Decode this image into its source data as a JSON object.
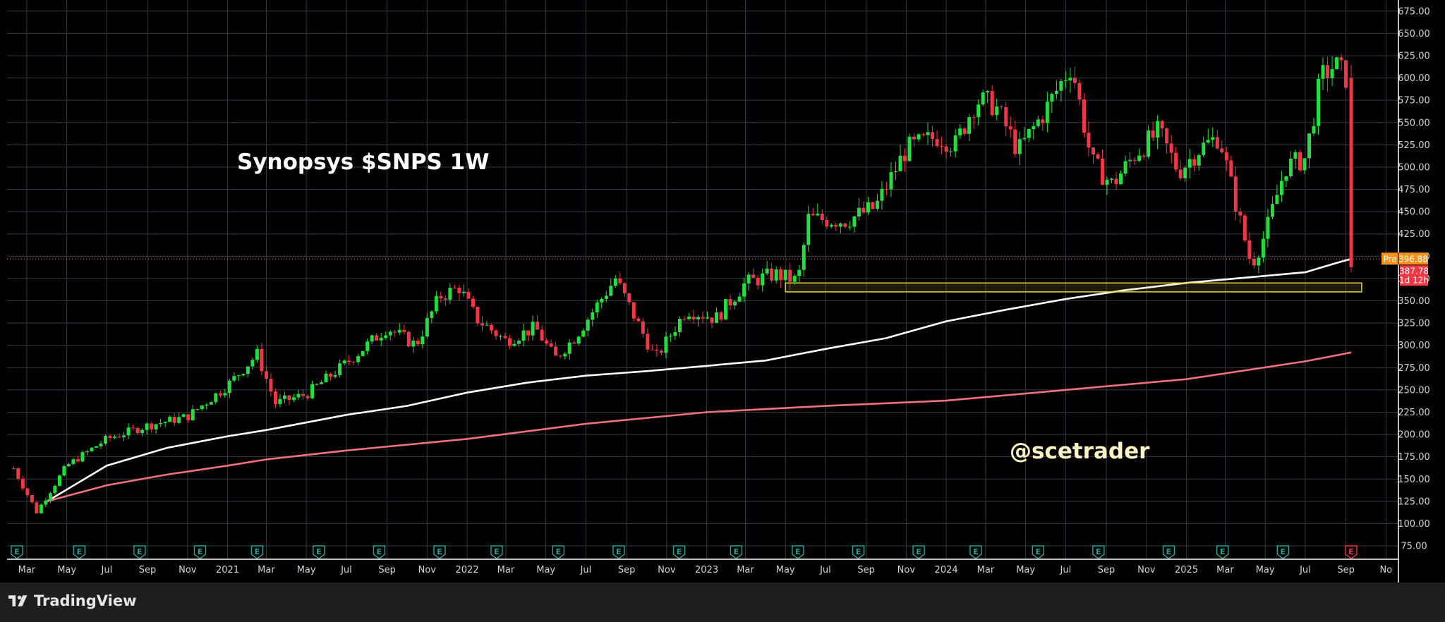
{
  "chart_data": {
    "type": "candlestick",
    "title": "Synopsys $SNPS 1W",
    "watermark": "@scetrader",
    "ylim": [
      60,
      687.5
    ],
    "y_ticks": [
      75,
      100,
      125,
      150,
      175,
      200,
      225,
      250,
      275,
      300,
      325,
      350,
      375,
      400,
      425,
      450,
      475,
      500,
      525,
      550,
      575,
      600,
      625,
      650,
      675
    ],
    "x_ticks": [
      {
        "label": "Mar",
        "x": "2020-03-01"
      },
      {
        "label": "May",
        "x": "2020-05-01"
      },
      {
        "label": "Jul",
        "x": "2020-07-01"
      },
      {
        "label": "Sep",
        "x": "2020-09-01"
      },
      {
        "label": "Nov",
        "x": "2020-11-01"
      },
      {
        "label": "2021",
        "x": "2021-01-01"
      },
      {
        "label": "Mar",
        "x": "2021-03-01"
      },
      {
        "label": "May",
        "x": "2021-05-01"
      },
      {
        "label": "Jul",
        "x": "2021-07-01"
      },
      {
        "label": "Sep",
        "x": "2021-09-01"
      },
      {
        "label": "Nov",
        "x": "2021-11-01"
      },
      {
        "label": "2022",
        "x": "2022-01-01"
      },
      {
        "label": "Mar",
        "x": "2022-03-01"
      },
      {
        "label": "May",
        "x": "2022-05-01"
      },
      {
        "label": "Jul",
        "x": "2022-07-01"
      },
      {
        "label": "Sep",
        "x": "2022-09-01"
      },
      {
        "label": "Nov",
        "x": "2022-11-01"
      },
      {
        "label": "2023",
        "x": "2023-01-01"
      },
      {
        "label": "Mar",
        "x": "2023-03-01"
      },
      {
        "label": "May",
        "x": "2023-05-01"
      },
      {
        "label": "Jul",
        "x": "2023-07-01"
      },
      {
        "label": "Sep",
        "x": "2023-09-01"
      },
      {
        "label": "Nov",
        "x": "2023-11-01"
      },
      {
        "label": "2024",
        "x": "2024-01-01"
      },
      {
        "label": "Mar",
        "x": "2024-03-01"
      },
      {
        "label": "May",
        "x": "2024-05-01"
      },
      {
        "label": "Jul",
        "x": "2024-07-01"
      },
      {
        "label": "Sep",
        "x": "2024-09-01"
      },
      {
        "label": "Nov",
        "x": "2024-11-01"
      },
      {
        "label": "2025",
        "x": "2025-01-01"
      },
      {
        "label": "Mar",
        "x": "2025-03-01"
      },
      {
        "label": "May",
        "x": "2025-05-01"
      },
      {
        "label": "Jul",
        "x": "2025-07-01"
      },
      {
        "label": "Sep",
        "x": "2025-09-01"
      },
      {
        "label": "No",
        "x": "2025-11-01"
      }
    ],
    "close_path": [
      [
        "2020-02-10",
        162
      ],
      [
        "2020-03-16",
        113
      ],
      [
        "2020-05-01",
        165
      ],
      [
        "2020-07-01",
        195
      ],
      [
        "2020-09-01",
        210
      ],
      [
        "2020-11-01",
        220
      ],
      [
        "2021-01-01",
        255
      ],
      [
        "2021-02-15",
        290
      ],
      [
        "2021-03-15",
        235
      ],
      [
        "2021-05-01",
        245
      ],
      [
        "2021-07-01",
        280
      ],
      [
        "2021-09-01",
        320
      ],
      [
        "2021-10-15",
        300
      ],
      [
        "2021-11-20",
        355
      ],
      [
        "2021-12-20",
        365
      ],
      [
        "2022-01-15",
        330
      ],
      [
        "2022-03-01",
        305
      ],
      [
        "2022-04-15",
        320
      ],
      [
        "2022-05-15",
        285
      ],
      [
        "2022-06-15",
        310
      ],
      [
        "2022-08-15",
        375
      ],
      [
        "2022-10-15",
        285
      ],
      [
        "2022-12-01",
        340
      ],
      [
        "2023-01-15",
        330
      ],
      [
        "2023-03-01",
        370
      ],
      [
        "2023-04-15",
        380
      ],
      [
        "2023-05-20",
        372
      ],
      [
        "2023-06-05",
        442
      ],
      [
        "2023-08-01",
        440
      ],
      [
        "2023-09-15",
        455
      ],
      [
        "2023-11-01",
        520
      ],
      [
        "2023-12-20",
        535
      ],
      [
        "2024-01-15",
        525
      ],
      [
        "2024-02-15",
        575
      ],
      [
        "2024-03-15",
        570
      ],
      [
        "2024-04-20",
        518
      ],
      [
        "2024-06-01",
        565
      ],
      [
        "2024-07-10",
        615
      ],
      [
        "2024-08-10",
        505
      ],
      [
        "2024-09-10",
        480
      ],
      [
        "2024-10-15",
        515
      ],
      [
        "2024-11-20",
        540
      ],
      [
        "2024-12-20",
        495
      ],
      [
        "2025-01-20",
        520
      ],
      [
        "2025-02-20",
        535
      ],
      [
        "2025-03-20",
        450
      ],
      [
        "2025-04-10",
        390
      ],
      [
        "2025-05-01",
        425
      ],
      [
        "2025-06-01",
        500
      ],
      [
        "2025-07-01",
        510
      ],
      [
        "2025-07-25",
        600
      ],
      [
        "2025-08-15",
        615
      ],
      [
        "2025-09-02",
        600
      ],
      [
        "2025-09-09",
        387.78
      ]
    ],
    "moving_averages": [
      {
        "color": "#ffffff",
        "points": [
          [
            "2020-04-01",
            125
          ],
          [
            "2020-07-01",
            165
          ],
          [
            "2020-10-01",
            185
          ],
          [
            "2021-01-01",
            198
          ],
          [
            "2021-03-01",
            205
          ],
          [
            "2021-07-01",
            222
          ],
          [
            "2021-10-01",
            232
          ],
          [
            "2022-01-01",
            247
          ],
          [
            "2022-04-01",
            258
          ],
          [
            "2022-07-01",
            266
          ],
          [
            "2022-10-01",
            271
          ],
          [
            "2023-01-01",
            277
          ],
          [
            "2023-04-01",
            283
          ],
          [
            "2023-07-01",
            296
          ],
          [
            "2023-10-01",
            308
          ],
          [
            "2024-01-01",
            327
          ],
          [
            "2024-04-01",
            340
          ],
          [
            "2024-07-01",
            352
          ],
          [
            "2024-10-01",
            362
          ],
          [
            "2025-01-01",
            370
          ],
          [
            "2025-04-01",
            376
          ],
          [
            "2025-07-01",
            382
          ],
          [
            "2025-08-20",
            393
          ],
          [
            "2025-09-09",
            397
          ]
        ]
      },
      {
        "color": "#f0707e",
        "points": [
          [
            "2020-04-01",
            125
          ],
          [
            "2020-07-01",
            143
          ],
          [
            "2020-10-01",
            155
          ],
          [
            "2021-01-01",
            165
          ],
          [
            "2021-03-01",
            172
          ],
          [
            "2021-07-01",
            182
          ],
          [
            "2022-01-01",
            195
          ],
          [
            "2022-07-01",
            212
          ],
          [
            "2023-01-01",
            225
          ],
          [
            "2023-07-01",
            232
          ],
          [
            "2024-01-01",
            238
          ],
          [
            "2024-07-01",
            250
          ],
          [
            "2025-01-01",
            262
          ],
          [
            "2025-04-01",
            272
          ],
          [
            "2025-07-01",
            282
          ],
          [
            "2025-09-09",
            292
          ]
        ]
      }
    ],
    "support_zone": {
      "x_start": "2023-05-01",
      "x_end": "2025-09-25",
      "y_low": 360,
      "y_high": 370,
      "color": "#e6d23a"
    },
    "price_labels": [
      {
        "text": "Pre",
        "value": "396.88",
        "color": "#f7931a"
      },
      {
        "text": "387.78",
        "sub": "1d 12h",
        "color": "#f23645"
      }
    ],
    "earnings_markers": [
      "2020-02-15",
      "2020-05-20",
      "2020-08-20",
      "2020-11-20",
      "2021-02-15",
      "2021-05-20",
      "2021-08-20",
      "2021-11-20",
      "2022-02-15",
      "2022-05-20",
      "2022-08-20",
      "2022-11-20",
      "2023-02-15",
      "2023-05-20",
      "2023-08-20",
      "2023-11-20",
      "2024-02-15",
      "2024-05-20",
      "2024-08-20",
      "2024-12-05",
      "2025-02-25",
      "2025-05-28",
      "2025-09-09"
    ],
    "colors": {
      "up": "#22e03c",
      "down": "#f23645",
      "grid": "#363a45",
      "background": "#000000"
    }
  },
  "footer": {
    "brand": "TradingView"
  }
}
